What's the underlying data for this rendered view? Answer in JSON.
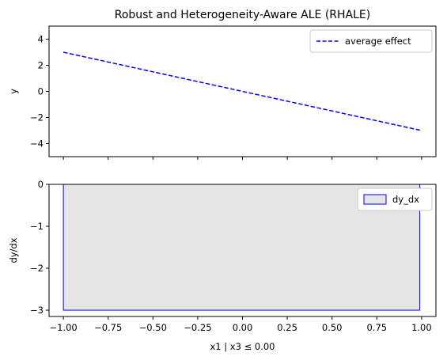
{
  "chart_data": [
    {
      "type": "line",
      "title": "Robust and Heterogeneity-Aware ALE (RHALE)",
      "xlabel": "",
      "ylabel": "y",
      "xlim": [
        -1.08,
        1.08
      ],
      "ylim": [
        -5,
        5
      ],
      "yticks": [
        4,
        2,
        0,
        -2,
        -4
      ],
      "yticklabels": [
        "4",
        "2",
        "0",
        "−2",
        "−4"
      ],
      "grid": false,
      "legend_position": "top-right",
      "series": [
        {
          "name": "average effect",
          "style": "dashed",
          "color": "#0000ff",
          "x": [
            -1.0,
            0.99
          ],
          "y": [
            3.0,
            -2.97
          ]
        }
      ]
    },
    {
      "type": "area",
      "title": "",
      "xlabel": "x1 | x3 ≤ 0.00",
      "ylabel": "dy/dx",
      "xlim": [
        -1.08,
        1.08
      ],
      "ylim": [
        -3.15,
        0
      ],
      "xticks": [
        -1.0,
        -0.75,
        -0.5,
        -0.25,
        0.0,
        0.25,
        0.5,
        0.75,
        1.0
      ],
      "xticklabels": [
        "−1.00",
        "−0.75",
        "−0.50",
        "−0.25",
        "0.00",
        "0.25",
        "0.50",
        "0.75",
        "1.00"
      ],
      "yticks": [
        0,
        -1,
        -2,
        -3
      ],
      "yticklabels": [
        "0",
        "−1",
        "−2",
        "−3"
      ],
      "grid": false,
      "legend_position": "top-right",
      "series": [
        {
          "name": "dy_dx",
          "edge_color": "#0000ff",
          "fill_color": "#e5e5e5",
          "x_start": -1.0,
          "x_end": 0.99,
          "value": -3.0
        }
      ]
    }
  ]
}
